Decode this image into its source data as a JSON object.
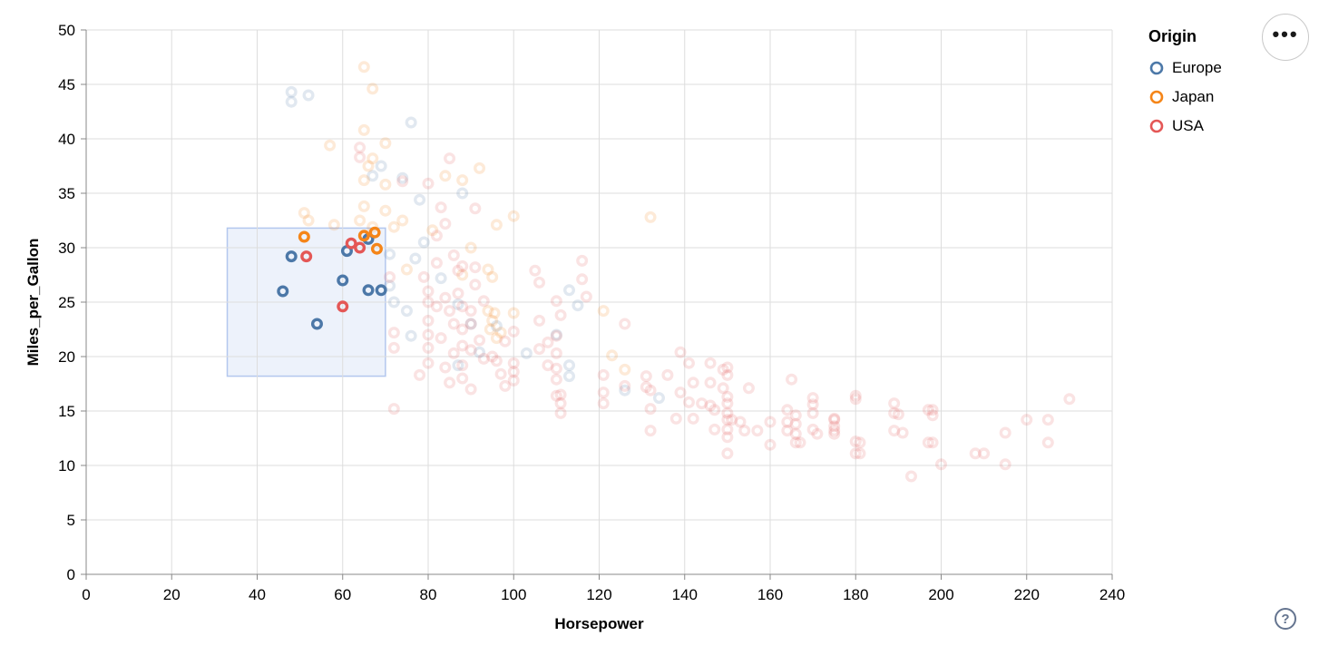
{
  "controls": {
    "more_options_glyph": "•••",
    "help_glyph": "?"
  },
  "chart_data": {
    "type": "scatter",
    "title": "",
    "xlabel": "Horsepower",
    "ylabel": "Miles_per_Gallon",
    "xlim": [
      0,
      240
    ],
    "ylim": [
      0,
      50
    ],
    "x_ticks": [
      0,
      20,
      40,
      60,
      80,
      100,
      120,
      140,
      160,
      180,
      200,
      220,
      240
    ],
    "y_ticks": [
      0,
      5,
      10,
      15,
      20,
      25,
      30,
      35,
      40,
      45,
      50
    ],
    "grid": true,
    "legend": {
      "title": "Origin",
      "position": "top-right",
      "entries": [
        "Europe",
        "Japan",
        "USA"
      ]
    },
    "colors": {
      "Europe": "#4c78a8",
      "Japan": "#f58518",
      "USA": "#e45756"
    },
    "point_style": {
      "shape": "ring",
      "radius": 4.8,
      "stroke_width": 3.4,
      "selected_opacity": 1.0,
      "unselected_opacity": 0.17
    },
    "brush_selection": {
      "x_range": [
        33,
        70
      ],
      "y_range": [
        18.2,
        31.8
      ],
      "fill": "#edf2fb",
      "stroke": "#b3c7ee"
    },
    "series": [
      {
        "name": "Europe",
        "selected_points": [
          [
            46,
            26
          ],
          [
            48,
            29.2
          ],
          [
            54,
            23
          ],
          [
            60,
            27
          ],
          [
            61,
            29.7
          ],
          [
            66,
            30.8
          ],
          [
            66,
            26.1
          ],
          [
            69,
            26.1
          ]
        ],
        "points": [
          [
            48,
            44.3
          ],
          [
            52,
            44
          ],
          [
            48,
            43.4
          ],
          [
            76,
            41.5
          ],
          [
            69,
            37.5
          ],
          [
            67,
            36.6
          ],
          [
            74,
            36.4
          ],
          [
            88,
            35
          ],
          [
            78,
            34.4
          ],
          [
            79,
            30.5
          ],
          [
            77,
            29
          ],
          [
            71,
            29.4
          ],
          [
            83,
            27.2
          ],
          [
            75,
            24.2
          ],
          [
            76,
            21.9
          ],
          [
            71,
            26.5
          ],
          [
            72,
            25
          ],
          [
            87,
            24.8
          ],
          [
            90,
            23
          ],
          [
            92,
            20.4
          ],
          [
            87,
            19.2
          ],
          [
            96,
            22.8
          ],
          [
            103,
            20.3
          ],
          [
            113,
            26.1
          ],
          [
            115,
            24.7
          ],
          [
            113,
            19.2
          ],
          [
            113,
            18.2
          ],
          [
            126,
            16.9
          ],
          [
            134,
            16.2
          ],
          [
            110,
            22
          ]
        ]
      },
      {
        "name": "Japan",
        "selected_points": [
          [
            51,
            31
          ],
          [
            65,
            31.1
          ],
          [
            67.5,
            31.4
          ],
          [
            68,
            29.9
          ]
        ],
        "points": [
          [
            65,
            46.6
          ],
          [
            67,
            44.6
          ],
          [
            65,
            40.8
          ],
          [
            70,
            39.6
          ],
          [
            57,
            39.4
          ],
          [
            67,
            38.2
          ],
          [
            66,
            37.5
          ],
          [
            92,
            37.3
          ],
          [
            88,
            36.2
          ],
          [
            84,
            36.6
          ],
          [
            65,
            36.2
          ],
          [
            70,
            35.8
          ],
          [
            65,
            33.8
          ],
          [
            70,
            33.4
          ],
          [
            74,
            32.5
          ],
          [
            51,
            33.2
          ],
          [
            52,
            32.5
          ],
          [
            64,
            32.5
          ],
          [
            58,
            32.1
          ],
          [
            72,
            31.9
          ],
          [
            81,
            31.6
          ],
          [
            96,
            32.1
          ],
          [
            100,
            32.9
          ],
          [
            132,
            32.8
          ],
          [
            90,
            30
          ],
          [
            88,
            27.5
          ],
          [
            94,
            28
          ],
          [
            95,
            27.3
          ],
          [
            75,
            28
          ],
          [
            100,
            24
          ],
          [
            121,
            24.2
          ],
          [
            123,
            20.1
          ],
          [
            126,
            18.8
          ],
          [
            94,
            24.2
          ],
          [
            95.5,
            24
          ],
          [
            97,
            22.2
          ],
          [
            94.5,
            22.5
          ],
          [
            96,
            21.7
          ],
          [
            95,
            23.3
          ],
          [
            67,
            31.9
          ]
        ]
      },
      {
        "name": "USA",
        "selected_points": [
          [
            51.5,
            29.2
          ],
          [
            60,
            24.6
          ],
          [
            62,
            30.4
          ],
          [
            64,
            30
          ]
        ],
        "points": [
          [
            64,
            39.2
          ],
          [
            64,
            38.3
          ],
          [
            85,
            38.2
          ],
          [
            80,
            35.9
          ],
          [
            74,
            36.1
          ],
          [
            83,
            33.7
          ],
          [
            91,
            33.6
          ],
          [
            84,
            32.2
          ],
          [
            82,
            31.1
          ],
          [
            86,
            29.3
          ],
          [
            88,
            28.3
          ],
          [
            91,
            28.2
          ],
          [
            82,
            28.6
          ],
          [
            79,
            27.3
          ],
          [
            71,
            27.3
          ],
          [
            72,
            22.2
          ],
          [
            72,
            20.8
          ],
          [
            78,
            18.3
          ],
          [
            72,
            15.2
          ],
          [
            80,
            26
          ],
          [
            80,
            25
          ],
          [
            80,
            23.3
          ],
          [
            80,
            22
          ],
          [
            80,
            20.8
          ],
          [
            80,
            19.4
          ],
          [
            82,
            24.6
          ],
          [
            83,
            21.7
          ],
          [
            84,
            25.4
          ],
          [
            84,
            19
          ],
          [
            85,
            24.2
          ],
          [
            85,
            17.6
          ],
          [
            86,
            23
          ],
          [
            86,
            20.3
          ],
          [
            87,
            25.8
          ],
          [
            88,
            24.6
          ],
          [
            88,
            22.5
          ],
          [
            88,
            21
          ],
          [
            88,
            19.2
          ],
          [
            88,
            18
          ],
          [
            90,
            24.2
          ],
          [
            90,
            23
          ],
          [
            90,
            20.6
          ],
          [
            90,
            17
          ],
          [
            92,
            21.5
          ],
          [
            93,
            25.1
          ],
          [
            93,
            19.8
          ],
          [
            95,
            20
          ],
          [
            96,
            19.6
          ],
          [
            97,
            18.4
          ],
          [
            98,
            21.4
          ],
          [
            98,
            17.3
          ],
          [
            91,
            26.6
          ],
          [
            87,
            27.9
          ],
          [
            105,
            27.9
          ],
          [
            116,
            28.8
          ],
          [
            106,
            26.8
          ],
          [
            116,
            27.1
          ],
          [
            117,
            25.5
          ],
          [
            110,
            25.1
          ],
          [
            111,
            23.8
          ],
          [
            106,
            23.3
          ],
          [
            100,
            22.3
          ],
          [
            110,
            21.9
          ],
          [
            108,
            21.3
          ],
          [
            106,
            20.7
          ],
          [
            108,
            19.2
          ],
          [
            100,
            19.4
          ],
          [
            100,
            18.6
          ],
          [
            100,
            17.8
          ],
          [
            110,
            20.3
          ],
          [
            110,
            18.9
          ],
          [
            110,
            17.9
          ],
          [
            110,
            16.4
          ],
          [
            121,
            18.3
          ],
          [
            126,
            17.3
          ],
          [
            131,
            18.2
          ],
          [
            131,
            17.2
          ],
          [
            136,
            18.3
          ],
          [
            139,
            20.4
          ],
          [
            141,
            19.4
          ],
          [
            142,
            17.6
          ],
          [
            146,
            19.4
          ],
          [
            146,
            17.6
          ],
          [
            126,
            23
          ],
          [
            111,
            16.5
          ],
          [
            111,
            15.7
          ],
          [
            111,
            14.8
          ],
          [
            121,
            16.7
          ],
          [
            121,
            15.7
          ],
          [
            132,
            16.9
          ],
          [
            132,
            15.2
          ],
          [
            139,
            16.7
          ],
          [
            141,
            15.8
          ],
          [
            144,
            15.7
          ],
          [
            146,
            15.5
          ],
          [
            147,
            15.1
          ],
          [
            132,
            13.2
          ],
          [
            138,
            14.3
          ],
          [
            142,
            14.3
          ],
          [
            147,
            13.3
          ],
          [
            150,
            19
          ],
          [
            150,
            18.3
          ],
          [
            150,
            16.3
          ],
          [
            150,
            15.7
          ],
          [
            150,
            14.8
          ],
          [
            150,
            14.2
          ],
          [
            150,
            13.3
          ],
          [
            150,
            12.6
          ],
          [
            150,
            11.1
          ],
          [
            149,
            18.8
          ],
          [
            149,
            17.1
          ],
          [
            155,
            17.1
          ],
          [
            151,
            14.2
          ],
          [
            153,
            14
          ],
          [
            154,
            13.2
          ],
          [
            157,
            13.2
          ],
          [
            160,
            14
          ],
          [
            160,
            11.9
          ],
          [
            165,
            17.9
          ],
          [
            164,
            15.1
          ],
          [
            164,
            14
          ],
          [
            164,
            13.2
          ],
          [
            170,
            16.2
          ],
          [
            170,
            15.6
          ],
          [
            170,
            14.8
          ],
          [
            166,
            12.1
          ],
          [
            170,
            13.3
          ],
          [
            175,
            14.2
          ],
          [
            175,
            13.2
          ],
          [
            180,
            16.4
          ],
          [
            180,
            16.1
          ],
          [
            180,
            12.2
          ],
          [
            180,
            11.1
          ],
          [
            189,
            15.7
          ],
          [
            189,
            14.8
          ],
          [
            189,
            13.2
          ],
          [
            193,
            9
          ],
          [
            197,
            15.1
          ],
          [
            197,
            12.1
          ],
          [
            166,
            14.6
          ],
          [
            166,
            13.8
          ],
          [
            166,
            12.9
          ],
          [
            171,
            12.9
          ],
          [
            167,
            12.1
          ],
          [
            175,
            14.3
          ],
          [
            175,
            13.6
          ],
          [
            175,
            12.9
          ],
          [
            181,
            12.1
          ],
          [
            181,
            11.1
          ],
          [
            190,
            14.7
          ],
          [
            191,
            13
          ],
          [
            198,
            14.6
          ],
          [
            198,
            12.1
          ],
          [
            198,
            15.1
          ],
          [
            230,
            16.1
          ],
          [
            225,
            14.2
          ],
          [
            220,
            14.2
          ],
          [
            215,
            13
          ],
          [
            225,
            12.1
          ],
          [
            208,
            11.1
          ],
          [
            210,
            11.1
          ],
          [
            200,
            10.1
          ],
          [
            215,
            10.1
          ]
        ]
      }
    ]
  }
}
